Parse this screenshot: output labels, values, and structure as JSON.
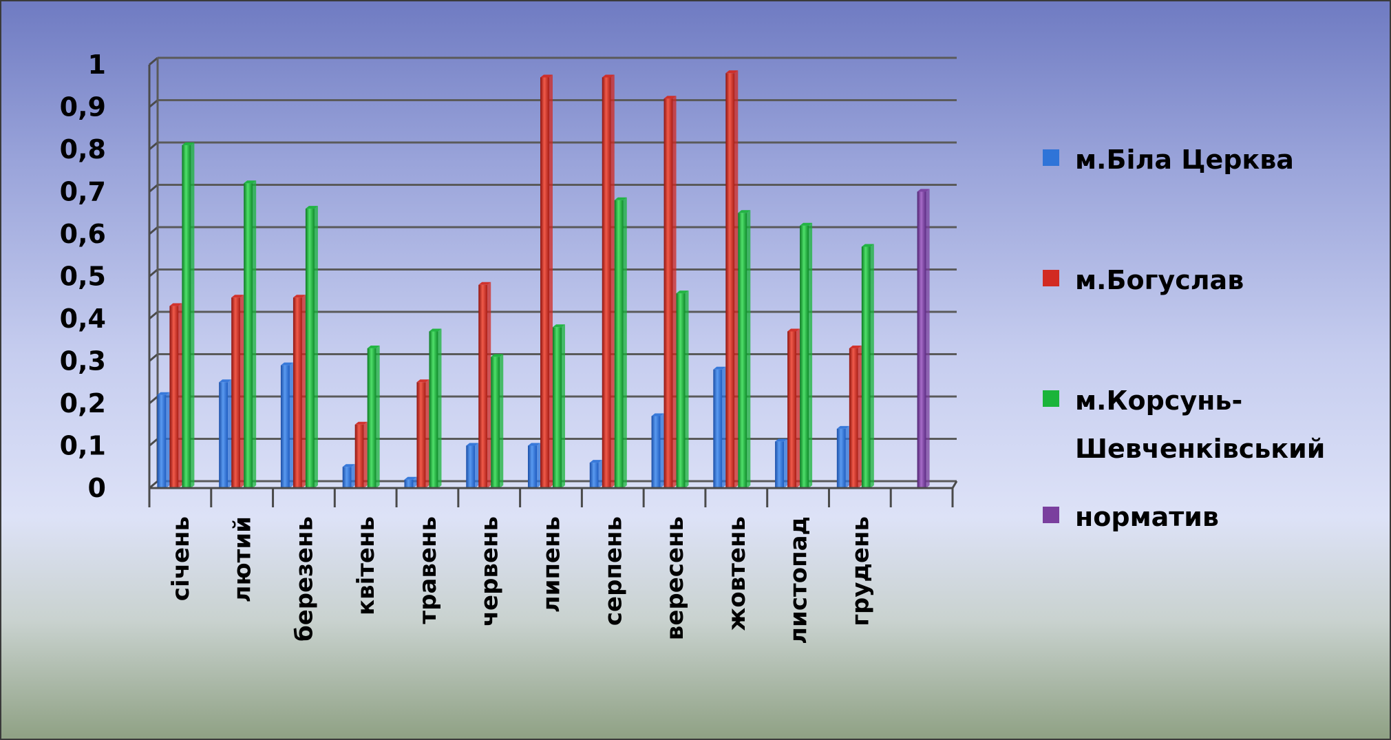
{
  "chart_data": {
    "type": "bar",
    "title": "",
    "xlabel": "",
    "ylabel": "",
    "ylim": [
      0,
      1
    ],
    "yticks": [
      "0",
      "0,1",
      "0,2",
      "0,3",
      "0,4",
      "0,5",
      "0,6",
      "0,7",
      "0,8",
      "0,9",
      "1"
    ],
    "grid": true,
    "legend_position": "right",
    "categories": [
      "січень",
      "лютий",
      "березень",
      "квітень",
      "травень",
      "червень",
      "липень",
      "серпень",
      "вересень",
      "жовтень",
      "листопад",
      "грудень",
      ""
    ],
    "series": [
      {
        "name": "м.Біла Церква",
        "color": "#2f74d8",
        "values": [
          0.22,
          0.25,
          0.29,
          0.05,
          0.02,
          0.1,
          0.1,
          0.06,
          0.17,
          0.28,
          0.11,
          0.14,
          null
        ]
      },
      {
        "name": "м.Богуслав",
        "color": "#d22a22",
        "values": [
          0.43,
          0.45,
          0.45,
          0.15,
          0.25,
          0.48,
          0.97,
          0.97,
          0.92,
          0.98,
          0.37,
          0.33,
          null
        ]
      },
      {
        "name": "м.Корсунь-Шевченківський",
        "name_lines": [
          "м.Корсунь-",
          "Шевченківський"
        ],
        "color": "#1ab43a",
        "values": [
          0.81,
          0.72,
          0.66,
          0.33,
          0.37,
          0.31,
          0.38,
          0.68,
          0.46,
          0.65,
          0.62,
          0.57,
          null
        ]
      },
      {
        "name": "норматив",
        "color": "#7a3f9e",
        "values": [
          null,
          null,
          null,
          null,
          null,
          null,
          null,
          null,
          null,
          null,
          null,
          null,
          0.7
        ]
      }
    ]
  }
}
